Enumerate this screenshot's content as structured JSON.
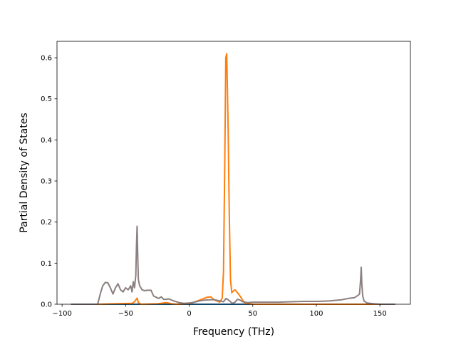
{
  "chart_data": {
    "type": "line",
    "title": "",
    "xlabel": "Frequency (THz)",
    "ylabel": "Partial Density of States",
    "xlim": [
      -104,
      174
    ],
    "ylim": [
      0,
      0.64
    ],
    "xticks": [
      -100,
      -50,
      0,
      50,
      100,
      150
    ],
    "xtick_labels": [
      "−100",
      "−50",
      "0",
      "50",
      "100",
      "150"
    ],
    "yticks": [
      0.0,
      0.1,
      0.2,
      0.3,
      0.4,
      0.5,
      0.6
    ],
    "ytick_labels": [
      "0.0",
      "0.1",
      "0.2",
      "0.3",
      "0.4",
      "0.5",
      "0.6"
    ],
    "grid": false,
    "legend": "none",
    "series": [
      {
        "color": "#1f77b4",
        "x": [
          -93,
          162
        ],
        "y": [
          0.0,
          0.0
        ]
      },
      {
        "color": "#ff7f0e",
        "x": [
          -93,
          -72,
          -45,
          -43,
          -41,
          -40,
          -38,
          -25,
          -18,
          -16,
          -14,
          -10,
          0,
          10,
          14,
          17,
          20,
          24,
          26,
          27,
          28,
          28.8,
          29.5,
          30.5,
          31.5,
          32.5,
          33.5,
          34.5,
          36,
          38,
          40,
          42,
          44,
          50,
          100,
          135,
          162
        ],
        "y": [
          0.0,
          0.0,
          0.002,
          0.006,
          0.015,
          0.004,
          0.0,
          0.001,
          0.004,
          0.003,
          0.001,
          0.0,
          0.001,
          0.012,
          0.017,
          0.018,
          0.01,
          0.005,
          0.015,
          0.08,
          0.35,
          0.6,
          0.61,
          0.45,
          0.22,
          0.06,
          0.028,
          0.032,
          0.035,
          0.028,
          0.02,
          0.01,
          0.002,
          0.0,
          0.0,
          0.0,
          0.0
        ]
      },
      {
        "color": "#8c7f7f",
        "x": [
          -93,
          -72,
          -70,
          -68,
          -66,
          -64,
          -62,
          -60,
          -58,
          -56,
          -54,
          -52,
          -50,
          -48,
          -46,
          -45,
          -44,
          -43,
          -42,
          -41.5,
          -41,
          -40.5,
          -40,
          -39,
          -37,
          -35,
          -33,
          -30,
          -28,
          -26,
          -24,
          -22,
          -20,
          -18,
          -16,
          -12,
          -8,
          -4,
          0,
          4,
          8,
          12,
          16,
          20,
          24,
          27,
          29,
          31,
          34,
          36,
          38,
          40,
          42,
          46,
          50,
          60,
          70,
          80,
          90,
          100,
          110,
          120,
          125,
          130,
          133,
          134,
          134.8,
          135.3,
          135.8,
          136.5,
          137.5,
          140,
          145,
          150,
          162
        ],
        "y": [
          0.0,
          0.0,
          0.025,
          0.045,
          0.053,
          0.052,
          0.04,
          0.025,
          0.04,
          0.05,
          0.035,
          0.03,
          0.04,
          0.035,
          0.045,
          0.03,
          0.055,
          0.04,
          0.07,
          0.14,
          0.19,
          0.12,
          0.06,
          0.045,
          0.035,
          0.033,
          0.034,
          0.034,
          0.02,
          0.017,
          0.014,
          0.018,
          0.012,
          0.012,
          0.013,
          0.008,
          0.004,
          0.002,
          0.003,
          0.005,
          0.008,
          0.01,
          0.011,
          0.011,
          0.008,
          0.006,
          0.014,
          0.01,
          0.002,
          0.005,
          0.012,
          0.01,
          0.006,
          0.004,
          0.005,
          0.005,
          0.005,
          0.006,
          0.007,
          0.007,
          0.008,
          0.011,
          0.014,
          0.016,
          0.022,
          0.025,
          0.06,
          0.09,
          0.05,
          0.02,
          0.008,
          0.003,
          0.001,
          0.0,
          0.0
        ]
      }
    ]
  }
}
